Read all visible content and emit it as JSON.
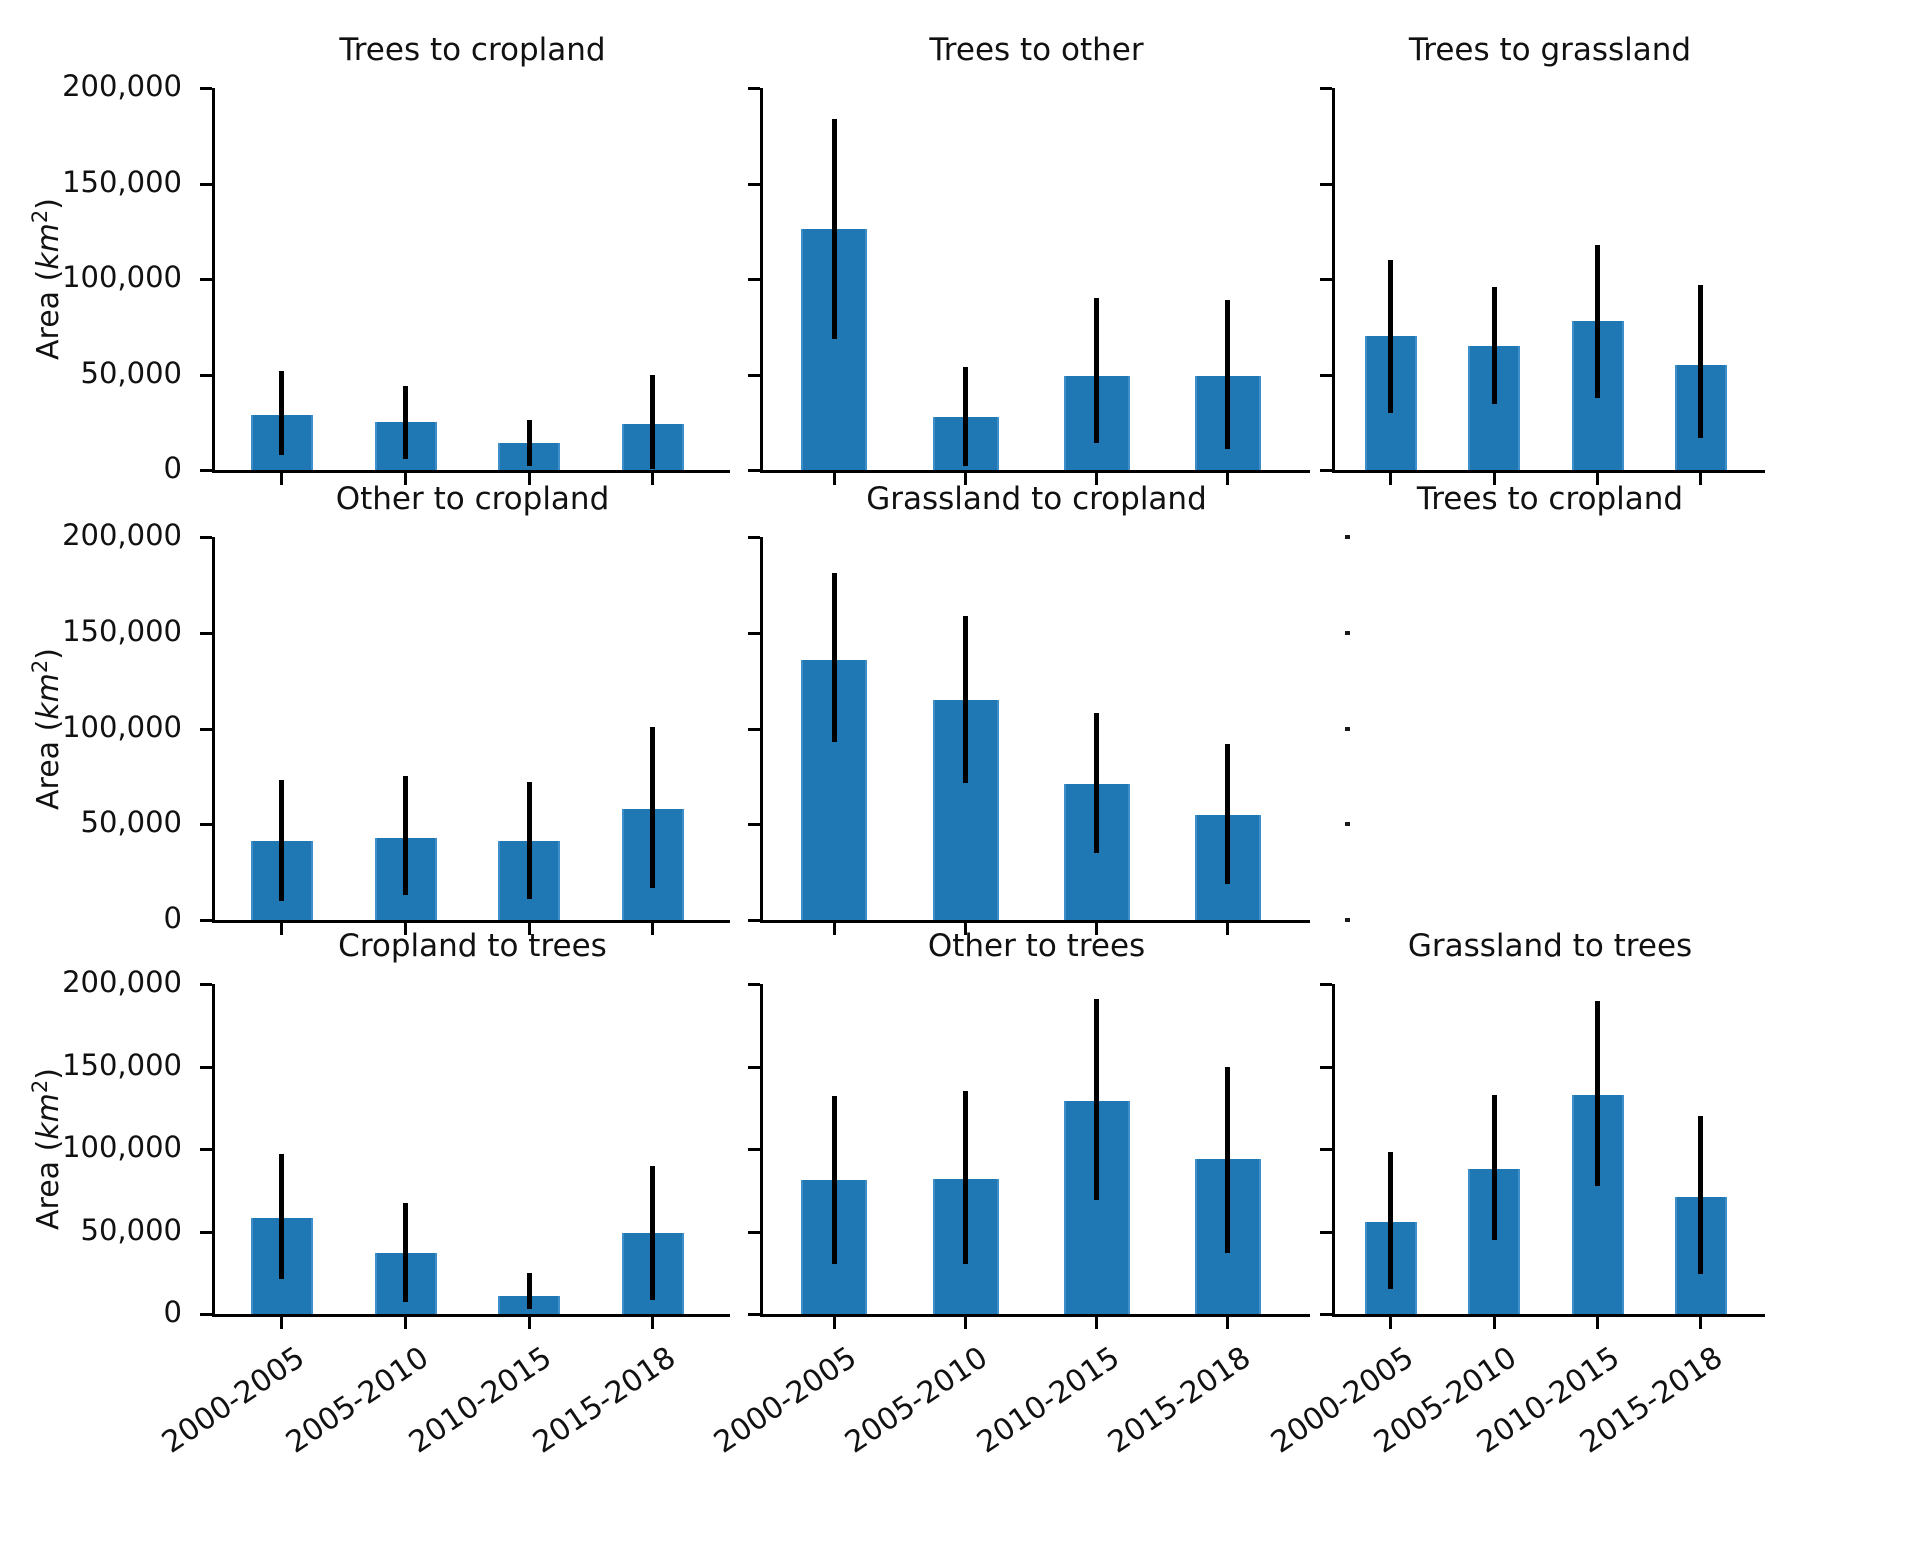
{
  "figure": {
    "background": "#ffffff",
    "bar_color": "#1f77b4",
    "axis_color": "#000000",
    "error_bar_color": "#000000"
  },
  "y_axis": {
    "label": {
      "prefix": "Area (",
      "unit": "km",
      "exp": "2",
      "suffix": ")"
    },
    "tick_values": [
      0,
      50000,
      100000,
      150000,
      200000
    ],
    "tick_labels": [
      "0",
      "50,000",
      "100,000",
      "150,000",
      "200,000"
    ],
    "ylim": [
      0,
      200000
    ]
  },
  "x_categories": [
    "2000-2005",
    "2005-2010",
    "2010-2015",
    "2015-2018"
  ],
  "chart_data": [
    {
      "type": "bar",
      "row": 0,
      "col": 0,
      "empty": false,
      "title": "Trees to cropland",
      "categories": [
        "2000-2005",
        "2005-2010",
        "2010-2015",
        "2015-2018"
      ],
      "values": [
        29000,
        25000,
        14000,
        24000
      ],
      "error_low": [
        8000,
        6000,
        2000,
        1000
      ],
      "error_high": [
        52000,
        44000,
        26000,
        50000
      ],
      "xlabel": "",
      "ylabel": "Area (km2)",
      "ylim": [
        0,
        200000
      ]
    },
    {
      "type": "bar",
      "row": 0,
      "col": 1,
      "empty": false,
      "title": "Trees to other",
      "categories": [
        "2000-2005",
        "2005-2010",
        "2010-2015",
        "2015-2018"
      ],
      "values": [
        126000,
        28000,
        49000,
        49000
      ],
      "error_low": [
        69000,
        2000,
        14000,
        11000
      ],
      "error_high": [
        184000,
        54000,
        90000,
        89000
      ],
      "xlabel": "",
      "ylabel": "",
      "ylim": [
        0,
        200000
      ]
    },
    {
      "type": "bar",
      "row": 0,
      "col": 2,
      "empty": false,
      "title": "Trees to grassland",
      "categories": [
        "2000-2005",
        "2005-2010",
        "2010-2015",
        "2015-2018"
      ],
      "values": [
        70000,
        65000,
        78000,
        55000
      ],
      "error_low": [
        30000,
        35000,
        38000,
        17000
      ],
      "error_high": [
        110000,
        96000,
        118000,
        97000
      ],
      "xlabel": "",
      "ylabel": "",
      "ylim": [
        0,
        200000
      ]
    },
    {
      "type": "bar",
      "row": 1,
      "col": 0,
      "empty": false,
      "title": "Other to cropland",
      "categories": [
        "2000-2005",
        "2005-2010",
        "2010-2015",
        "2015-2018"
      ],
      "values": [
        41000,
        43000,
        41000,
        58000
      ],
      "error_low": [
        10000,
        13000,
        11000,
        17000
      ],
      "error_high": [
        73000,
        75000,
        72000,
        101000
      ],
      "xlabel": "",
      "ylabel": "Area (km2)",
      "ylim": [
        0,
        200000
      ]
    },
    {
      "type": "bar",
      "row": 1,
      "col": 1,
      "empty": false,
      "title": "Grassland to cropland",
      "categories": [
        "2000-2005",
        "2005-2010",
        "2010-2015",
        "2015-2018"
      ],
      "values": [
        136000,
        115000,
        71000,
        55000
      ],
      "error_low": [
        93000,
        72000,
        35000,
        19000
      ],
      "error_high": [
        181000,
        159000,
        108000,
        92000
      ],
      "xlabel": "",
      "ylabel": "",
      "ylim": [
        0,
        200000
      ]
    },
    {
      "type": "bar",
      "row": 1,
      "col": 2,
      "empty": true,
      "title": "Trees to cropland",
      "categories": [],
      "values": [],
      "error_low": [],
      "error_high": [],
      "xlabel": "",
      "ylabel": "",
      "ylim": [
        0,
        200000
      ]
    },
    {
      "type": "bar",
      "row": 2,
      "col": 0,
      "empty": false,
      "title": "Cropland to trees",
      "categories": [
        "2000-2005",
        "2005-2010",
        "2010-2015",
        "2015-2018"
      ],
      "values": [
        58000,
        37000,
        11000,
        49000
      ],
      "error_low": [
        21000,
        7000,
        3000,
        9000
      ],
      "error_high": [
        97000,
        67000,
        25000,
        90000
      ],
      "xlabel": "",
      "ylabel": "Area (km2)",
      "ylim": [
        0,
        200000
      ]
    },
    {
      "type": "bar",
      "row": 2,
      "col": 1,
      "empty": false,
      "title": "Other to trees",
      "categories": [
        "2000-2005",
        "2005-2010",
        "2010-2015",
        "2015-2018"
      ],
      "values": [
        81000,
        82000,
        129000,
        94000
      ],
      "error_low": [
        30000,
        30000,
        69000,
        37000
      ],
      "error_high": [
        132000,
        135000,
        191000,
        150000
      ],
      "xlabel": "",
      "ylabel": "",
      "ylim": [
        0,
        200000
      ]
    },
    {
      "type": "bar",
      "row": 2,
      "col": 2,
      "empty": false,
      "title": "Grassland to trees",
      "categories": [
        "2000-2005",
        "2005-2010",
        "2010-2015",
        "2015-2018"
      ],
      "values": [
        56000,
        88000,
        133000,
        71000
      ],
      "error_low": [
        15000,
        45000,
        78000,
        24000
      ],
      "error_high": [
        98000,
        133000,
        190000,
        120000
      ],
      "xlabel": "",
      "ylabel": "",
      "ylim": [
        0,
        200000
      ]
    }
  ]
}
